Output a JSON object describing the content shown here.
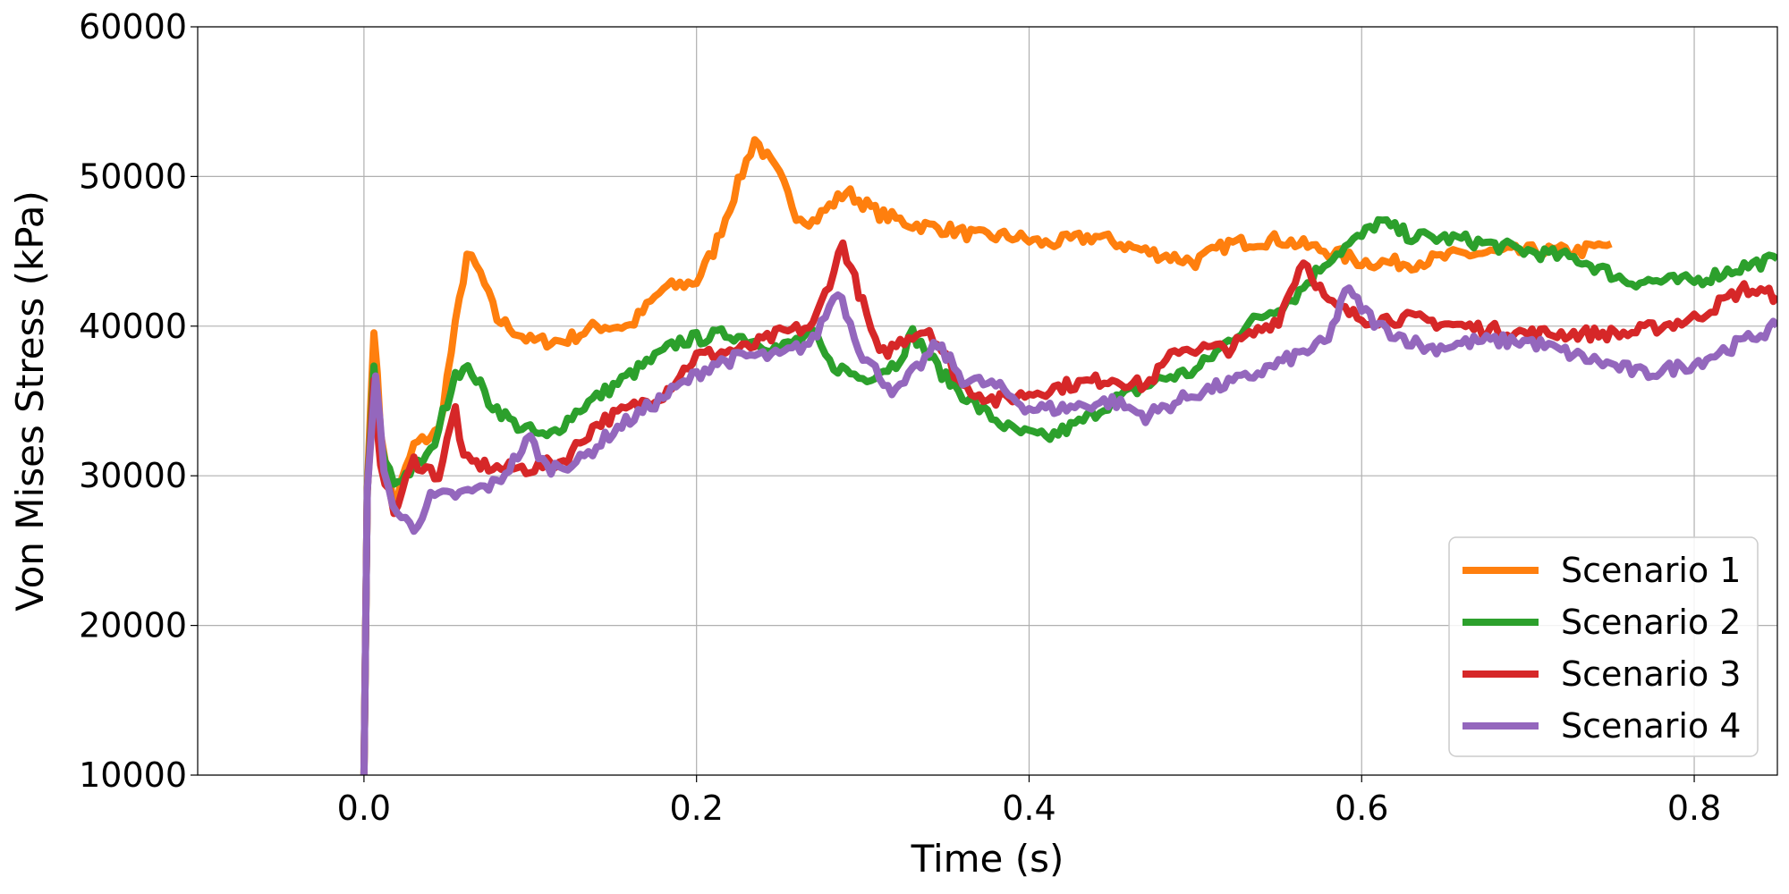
{
  "chart_data": {
    "type": "line",
    "title": "",
    "xlabel": "Time (s)",
    "ylabel": "Von Mises Stress (kPa)",
    "xlim": [
      -0.1,
      0.85
    ],
    "ylim": [
      10000,
      60000
    ],
    "x_ticks": [
      0.0,
      0.2,
      0.4,
      0.6,
      0.8
    ],
    "x_tick_labels": [
      "0.0",
      "0.2",
      "0.4",
      "0.6",
      "0.8"
    ],
    "y_ticks": [
      10000,
      20000,
      30000,
      40000,
      50000,
      60000
    ],
    "y_tick_labels": [
      "10000",
      "20000",
      "30000",
      "40000",
      "50000",
      "60000"
    ],
    "grid": true,
    "legend_position": "lower-right",
    "series": [
      {
        "name": "Scenario 1",
        "color": "#ff7f0e",
        "points": [
          [
            0.0,
            10000
          ],
          [
            0.002,
            29000
          ],
          [
            0.006,
            40000
          ],
          [
            0.01,
            33000
          ],
          [
            0.018,
            28000
          ],
          [
            0.03,
            32000
          ],
          [
            0.045,
            33000
          ],
          [
            0.055,
            40000
          ],
          [
            0.062,
            44800
          ],
          [
            0.07,
            43500
          ],
          [
            0.08,
            40500
          ],
          [
            0.1,
            39000
          ],
          [
            0.12,
            39000
          ],
          [
            0.14,
            40000
          ],
          [
            0.16,
            40000
          ],
          [
            0.18,
            42500
          ],
          [
            0.2,
            43000
          ],
          [
            0.21,
            45000
          ],
          [
            0.22,
            48000
          ],
          [
            0.235,
            52500
          ],
          [
            0.25,
            50000
          ],
          [
            0.26,
            47500
          ],
          [
            0.27,
            47000
          ],
          [
            0.29,
            49000
          ],
          [
            0.31,
            47500
          ],
          [
            0.33,
            46800
          ],
          [
            0.35,
            46500
          ],
          [
            0.37,
            46000
          ],
          [
            0.39,
            46000
          ],
          [
            0.41,
            45500
          ],
          [
            0.44,
            46000
          ],
          [
            0.47,
            45000
          ],
          [
            0.5,
            44300
          ],
          [
            0.52,
            45500
          ],
          [
            0.55,
            45800
          ],
          [
            0.58,
            45000
          ],
          [
            0.6,
            44300
          ],
          [
            0.63,
            44200
          ],
          [
            0.66,
            44800
          ],
          [
            0.7,
            45000
          ],
          [
            0.73,
            45000
          ],
          [
            0.75,
            45500
          ]
        ]
      },
      {
        "name": "Scenario 2",
        "color": "#2ca02c",
        "points": [
          [
            0.0,
            10000
          ],
          [
            0.002,
            29000
          ],
          [
            0.006,
            37000
          ],
          [
            0.01,
            32000
          ],
          [
            0.018,
            29500
          ],
          [
            0.03,
            30500
          ],
          [
            0.04,
            31500
          ],
          [
            0.05,
            35000
          ],
          [
            0.055,
            37000
          ],
          [
            0.065,
            37000
          ],
          [
            0.075,
            35000
          ],
          [
            0.09,
            33500
          ],
          [
            0.11,
            32500
          ],
          [
            0.13,
            34500
          ],
          [
            0.15,
            36000
          ],
          [
            0.17,
            37500
          ],
          [
            0.19,
            39000
          ],
          [
            0.22,
            39500
          ],
          [
            0.25,
            38500
          ],
          [
            0.27,
            39500
          ],
          [
            0.28,
            37500
          ],
          [
            0.3,
            36500
          ],
          [
            0.32,
            37500
          ],
          [
            0.33,
            39500
          ],
          [
            0.35,
            36500
          ],
          [
            0.37,
            34500
          ],
          [
            0.39,
            33000
          ],
          [
            0.41,
            32500
          ],
          [
            0.43,
            33500
          ],
          [
            0.45,
            35000
          ],
          [
            0.48,
            36500
          ],
          [
            0.5,
            37000
          ],
          [
            0.53,
            40000
          ],
          [
            0.56,
            42000
          ],
          [
            0.58,
            44500
          ],
          [
            0.6,
            46000
          ],
          [
            0.61,
            47000
          ],
          [
            0.63,
            46000
          ],
          [
            0.66,
            45800
          ],
          [
            0.7,
            45000
          ],
          [
            0.73,
            44500
          ],
          [
            0.76,
            43000
          ],
          [
            0.8,
            43000
          ],
          [
            0.83,
            44000
          ],
          [
            0.85,
            44500
          ]
        ]
      },
      {
        "name": "Scenario 3",
        "color": "#d62728",
        "points": [
          [
            0.0,
            10000
          ],
          [
            0.002,
            29000
          ],
          [
            0.006,
            36000
          ],
          [
            0.01,
            31000
          ],
          [
            0.018,
            27500
          ],
          [
            0.03,
            31000
          ],
          [
            0.045,
            30000
          ],
          [
            0.055,
            34500
          ],
          [
            0.06,
            31000
          ],
          [
            0.08,
            30500
          ],
          [
            0.1,
            30500
          ],
          [
            0.12,
            31000
          ],
          [
            0.14,
            33500
          ],
          [
            0.16,
            34500
          ],
          [
            0.18,
            35500
          ],
          [
            0.2,
            38000
          ],
          [
            0.23,
            38500
          ],
          [
            0.25,
            39500
          ],
          [
            0.27,
            40000
          ],
          [
            0.28,
            43000
          ],
          [
            0.288,
            45500
          ],
          [
            0.3,
            41500
          ],
          [
            0.31,
            38000
          ],
          [
            0.33,
            39500
          ],
          [
            0.34,
            39800
          ],
          [
            0.36,
            36000
          ],
          [
            0.38,
            35000
          ],
          [
            0.4,
            35500
          ],
          [
            0.42,
            36000
          ],
          [
            0.45,
            36500
          ],
          [
            0.47,
            36000
          ],
          [
            0.49,
            38500
          ],
          [
            0.52,
            38500
          ],
          [
            0.55,
            40500
          ],
          [
            0.565,
            44500
          ],
          [
            0.58,
            41500
          ],
          [
            0.6,
            40500
          ],
          [
            0.63,
            40500
          ],
          [
            0.66,
            40000
          ],
          [
            0.7,
            39500
          ],
          [
            0.73,
            39500
          ],
          [
            0.76,
            39500
          ],
          [
            0.8,
            40500
          ],
          [
            0.83,
            42500
          ],
          [
            0.85,
            42000
          ]
        ]
      },
      {
        "name": "Scenario 4",
        "color": "#9467bd",
        "points": [
          [
            0.0,
            10000
          ],
          [
            0.002,
            29000
          ],
          [
            0.007,
            37000
          ],
          [
            0.012,
            30000
          ],
          [
            0.02,
            27500
          ],
          [
            0.03,
            26500
          ],
          [
            0.04,
            28500
          ],
          [
            0.06,
            28800
          ],
          [
            0.08,
            29500
          ],
          [
            0.1,
            32500
          ],
          [
            0.11,
            30500
          ],
          [
            0.13,
            31000
          ],
          [
            0.15,
            33000
          ],
          [
            0.17,
            34500
          ],
          [
            0.19,
            36000
          ],
          [
            0.21,
            37500
          ],
          [
            0.23,
            38000
          ],
          [
            0.25,
            38000
          ],
          [
            0.27,
            39000
          ],
          [
            0.285,
            42500
          ],
          [
            0.3,
            38000
          ],
          [
            0.32,
            35500
          ],
          [
            0.345,
            38800
          ],
          [
            0.36,
            36500
          ],
          [
            0.38,
            36000
          ],
          [
            0.4,
            34500
          ],
          [
            0.42,
            34500
          ],
          [
            0.45,
            35000
          ],
          [
            0.47,
            34000
          ],
          [
            0.5,
            35500
          ],
          [
            0.53,
            36500
          ],
          [
            0.56,
            38000
          ],
          [
            0.58,
            39000
          ],
          [
            0.59,
            42500
          ],
          [
            0.61,
            40000
          ],
          [
            0.64,
            38500
          ],
          [
            0.67,
            39000
          ],
          [
            0.7,
            39000
          ],
          [
            0.73,
            38000
          ],
          [
            0.77,
            36800
          ],
          [
            0.8,
            37500
          ],
          [
            0.83,
            39000
          ],
          [
            0.85,
            40000
          ]
        ]
      }
    ]
  }
}
